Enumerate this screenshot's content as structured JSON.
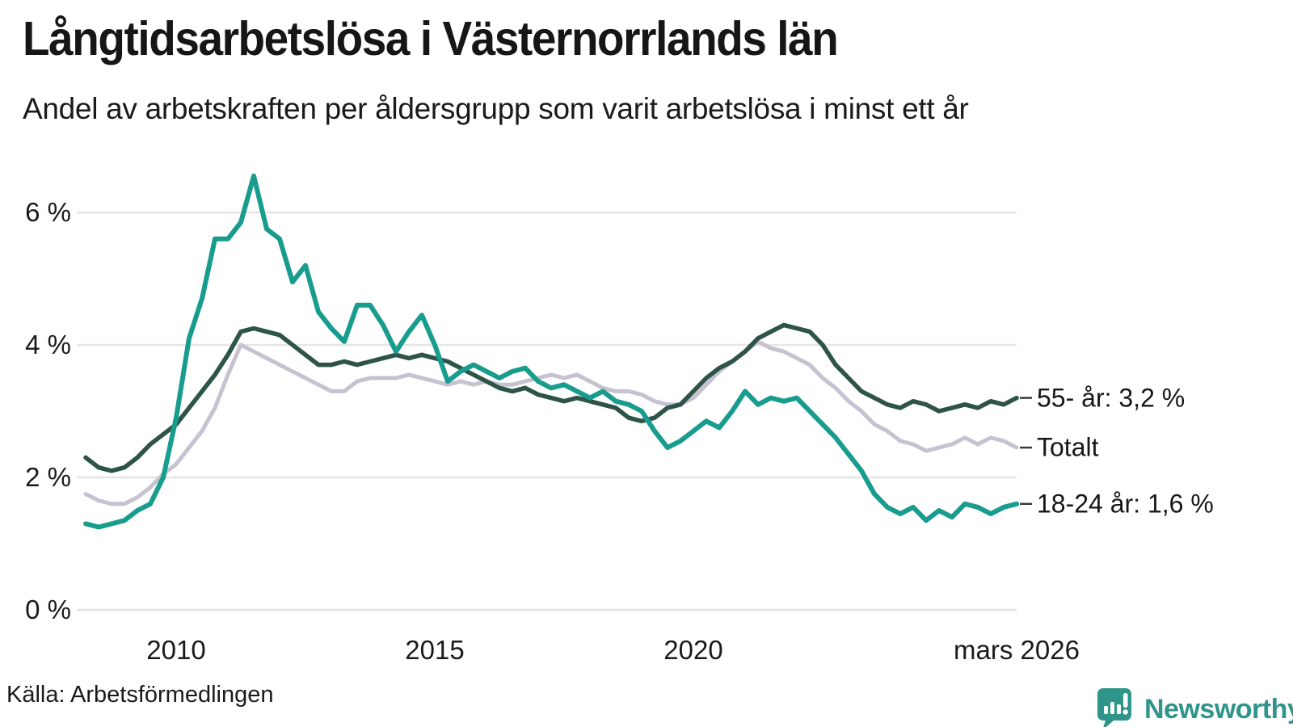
{
  "header": {
    "title": "Långtidsarbetslösa i Västernorrlands län",
    "subtitle": "Andel av arbetskraften per åldersgrupp som varit arbetslösa i minst ett år"
  },
  "footer": {
    "source": "Källa: Arbetsförmedlingen",
    "brand": {
      "name": "Newsworthy",
      "icon": "newsworthy-speech-bubble-barchart-icon",
      "color": "#2f958b"
    }
  },
  "colors": {
    "grid": "#e6e6e6",
    "text": "#1a1a1a",
    "leader_tick": "#3a3a3a"
  },
  "chart_data": {
    "type": "line",
    "title": "Långtidsarbetslösa i Västernorrlands län",
    "subtitle": "Andel av arbetskraften per åldersgrupp som varit arbetslösa i minst ett år",
    "grid": true,
    "legend_position": "end-of-line-labels",
    "x_start": 2008.25,
    "x_step": 0.25,
    "x_end": 2026.25,
    "ylim": [
      0,
      6.8
    ],
    "y_unit": "%",
    "x_ticks": [
      {
        "label": "2010",
        "year": 2010
      },
      {
        "label": "2015",
        "year": 2015
      },
      {
        "label": "2020",
        "year": 2020
      },
      {
        "label": "mars 2026",
        "year": 2026.25
      }
    ],
    "y_ticks": [
      {
        "label": "0 %",
        "value": 0
      },
      {
        "label": "2 %",
        "value": 2
      },
      {
        "label": "4 %",
        "value": 4
      },
      {
        "label": "6 %",
        "value": 6
      }
    ],
    "series": [
      {
        "name": "55- år",
        "end_label": "55- år: 3,2 %",
        "end_value": "3,2 %",
        "color": "#2e5349",
        "stroke_width": 5.5,
        "values": [
          2.3,
          2.15,
          2.1,
          2.15,
          2.3,
          2.5,
          2.65,
          2.8,
          3.05,
          3.3,
          3.55,
          3.85,
          4.2,
          4.25,
          4.2,
          4.15,
          4.0,
          3.85,
          3.7,
          3.7,
          3.75,
          3.7,
          3.75,
          3.8,
          3.85,
          3.8,
          3.85,
          3.8,
          3.75,
          3.65,
          3.55,
          3.45,
          3.35,
          3.3,
          3.35,
          3.25,
          3.2,
          3.15,
          3.2,
          3.15,
          3.1,
          3.05,
          2.9,
          2.85,
          2.9,
          3.05,
          3.1,
          3.3,
          3.5,
          3.65,
          3.75,
          3.9,
          4.1,
          4.2,
          4.3,
          4.25,
          4.2,
          4.0,
          3.7,
          3.5,
          3.3,
          3.2,
          3.1,
          3.05,
          3.15,
          3.1,
          3.0,
          3.05,
          3.1,
          3.05,
          3.15,
          3.1,
          3.2
        ]
      },
      {
        "name": "Totalt",
        "end_label": "Totalt",
        "end_value": "",
        "color": "#c6c2d1",
        "stroke_width": 5,
        "values": [
          1.75,
          1.65,
          1.6,
          1.6,
          1.7,
          1.85,
          2.05,
          2.2,
          2.45,
          2.7,
          3.05,
          3.55,
          4.0,
          3.9,
          3.8,
          3.7,
          3.6,
          3.5,
          3.4,
          3.3,
          3.3,
          3.45,
          3.5,
          3.5,
          3.5,
          3.55,
          3.5,
          3.45,
          3.4,
          3.45,
          3.4,
          3.45,
          3.4,
          3.4,
          3.45,
          3.5,
          3.55,
          3.5,
          3.55,
          3.45,
          3.35,
          3.3,
          3.3,
          3.25,
          3.15,
          3.1,
          3.1,
          3.2,
          3.4,
          3.6,
          3.75,
          3.9,
          4.05,
          3.95,
          3.9,
          3.8,
          3.7,
          3.5,
          3.35,
          3.15,
          3.0,
          2.8,
          2.7,
          2.55,
          2.5,
          2.4,
          2.45,
          2.5,
          2.6,
          2.5,
          2.6,
          2.55,
          2.45
        ]
      },
      {
        "name": "18-24 år",
        "end_label": "18-24 år: 1,6 %",
        "end_value": "1,6 %",
        "color": "#179c8d",
        "stroke_width": 6,
        "values": [
          1.3,
          1.25,
          1.3,
          1.35,
          1.5,
          1.6,
          2.0,
          2.9,
          4.1,
          4.7,
          5.6,
          5.6,
          5.85,
          6.55,
          5.75,
          5.6,
          4.95,
          5.2,
          4.5,
          4.25,
          4.05,
          4.6,
          4.6,
          4.3,
          3.9,
          4.2,
          4.45,
          4.0,
          3.45,
          3.6,
          3.7,
          3.6,
          3.5,
          3.6,
          3.65,
          3.45,
          3.35,
          3.4,
          3.3,
          3.2,
          3.3,
          3.15,
          3.1,
          3.0,
          2.7,
          2.45,
          2.55,
          2.7,
          2.85,
          2.75,
          3.0,
          3.3,
          3.1,
          3.2,
          3.15,
          3.2,
          3.0,
          2.8,
          2.6,
          2.35,
          2.1,
          1.75,
          1.55,
          1.45,
          1.55,
          1.35,
          1.5,
          1.4,
          1.6,
          1.55,
          1.45,
          1.55,
          1.6
        ]
      }
    ]
  }
}
